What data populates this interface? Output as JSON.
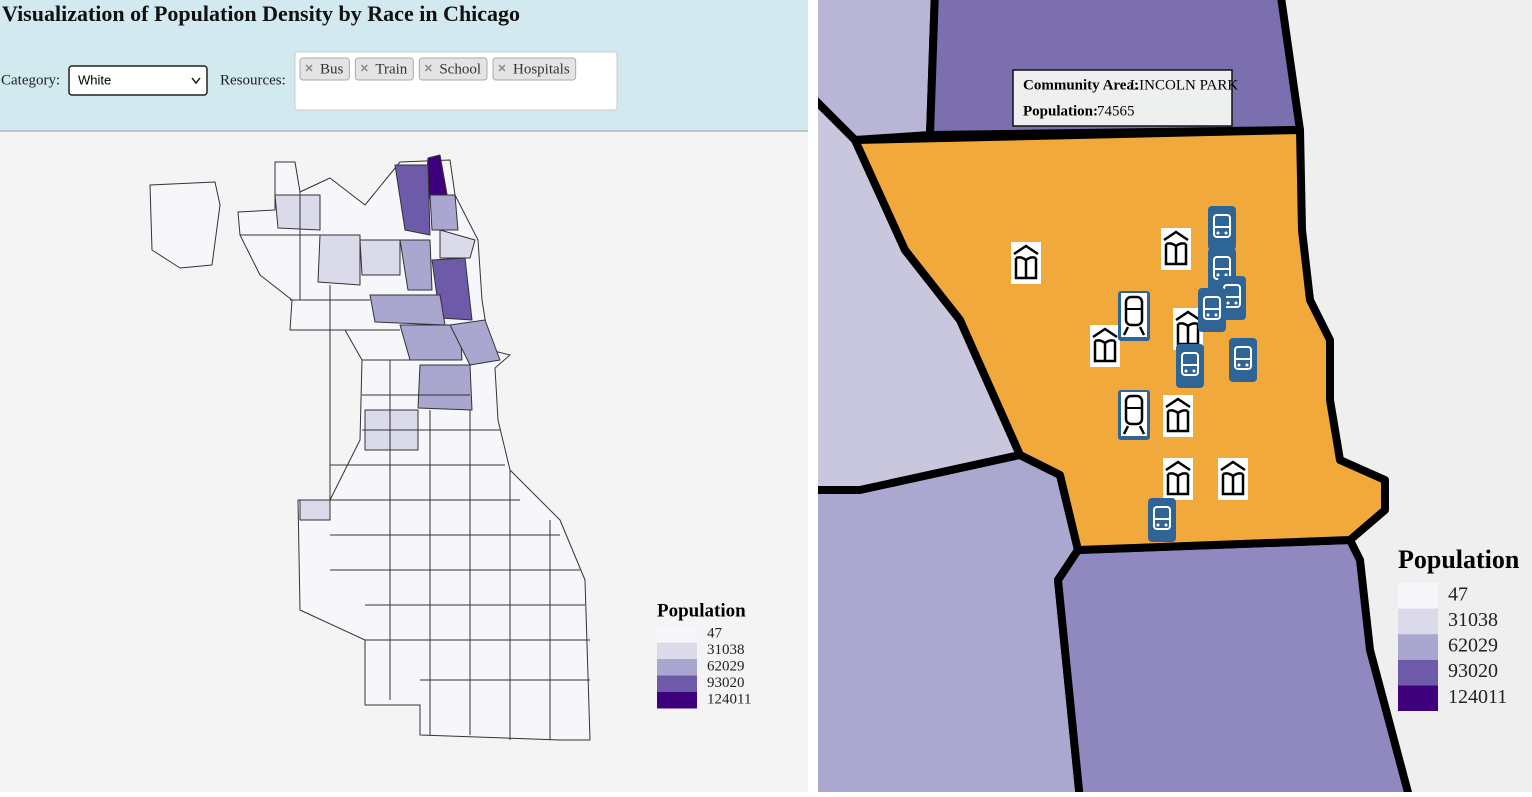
{
  "header": {
    "title": "Visualization of Population Density by Race in Chicago",
    "category_label": "Category:",
    "category_value": "White",
    "resources_label": "Resources:",
    "resources": [
      "Bus",
      "Train",
      "School",
      "Hospitals"
    ]
  },
  "legend": {
    "title": "Population",
    "values": [
      47,
      31038,
      62029,
      93020,
      124011
    ],
    "colors": [
      "#f7f6fb",
      "#dadaeb",
      "#a9a6cf",
      "#6d5aa8",
      "#3f007d"
    ]
  },
  "tooltip": {
    "area_label": "Community Area:",
    "area_name": "LINCOLN PARK",
    "population_label": "Population:",
    "population": 74565
  }
}
